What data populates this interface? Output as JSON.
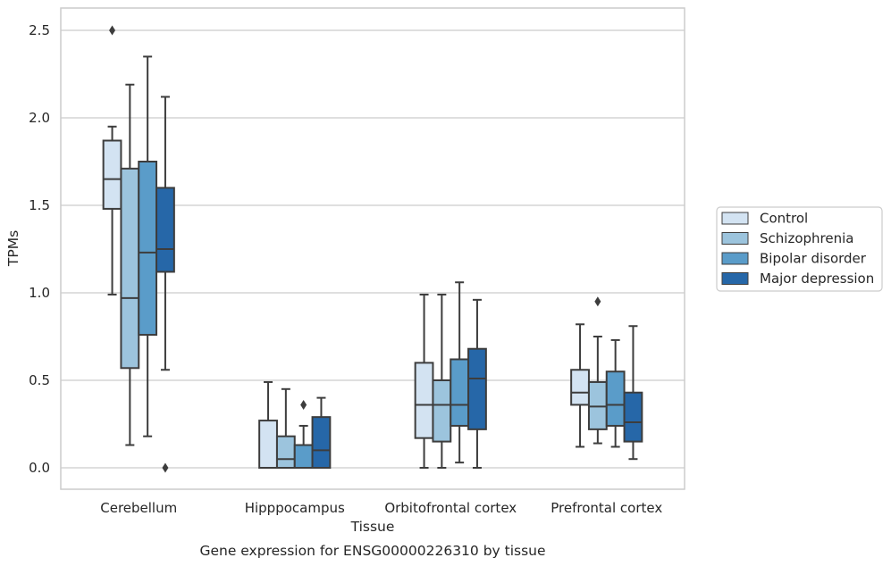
{
  "caption": "Gene expression for ENSG00000226310 by tissue",
  "chart_data": {
    "type": "boxplot",
    "xlabel": "Tissue",
    "ylabel": "TPMs",
    "ylim": [
      -0.12,
      2.63
    ],
    "yticks": [
      "0.0",
      "0.5",
      "1.0",
      "1.5",
      "2.0",
      "2.5"
    ],
    "grid": "horizontal",
    "legend_placement": "right",
    "categories": [
      "Cerebellum",
      "Hipppocampus",
      "Orbitofrontal cortex",
      "Prefrontal cortex"
    ],
    "series": [
      {
        "name": "Control",
        "color": "#d3e3f2",
        "boxes": [
          {
            "min": 0.99,
            "q1": 1.48,
            "median": 1.65,
            "q3": 1.87,
            "max": 1.95,
            "outliers": [
              2.5
            ]
          },
          {
            "min": 0.0,
            "q1": 0.0,
            "median": 0.0,
            "q3": 0.27,
            "max": 0.49,
            "outliers": []
          },
          {
            "min": 0.0,
            "q1": 0.17,
            "median": 0.36,
            "q3": 0.6,
            "max": 0.99,
            "outliers": []
          },
          {
            "min": 0.12,
            "q1": 0.36,
            "median": 0.43,
            "q3": 0.56,
            "max": 0.82,
            "outliers": []
          }
        ]
      },
      {
        "name": "Schizophrenia",
        "color": "#9cc4dd",
        "boxes": [
          {
            "min": 0.13,
            "q1": 0.57,
            "median": 0.97,
            "q3": 1.71,
            "max": 2.19,
            "outliers": []
          },
          {
            "min": 0.0,
            "q1": 0.0,
            "median": 0.05,
            "q3": 0.18,
            "max": 0.45,
            "outliers": []
          },
          {
            "min": 0.0,
            "q1": 0.15,
            "median": 0.36,
            "q3": 0.5,
            "max": 0.99,
            "outliers": []
          },
          {
            "min": 0.14,
            "q1": 0.22,
            "median": 0.35,
            "q3": 0.49,
            "max": 0.75,
            "outliers": [
              0.95
            ]
          }
        ]
      },
      {
        "name": "Bipolar disorder",
        "color": "#5a9cc9",
        "boxes": [
          {
            "min": 0.18,
            "q1": 0.76,
            "median": 1.23,
            "q3": 1.75,
            "max": 2.35,
            "outliers": []
          },
          {
            "min": 0.0,
            "q1": 0.0,
            "median": 0.0,
            "q3": 0.13,
            "max": 0.24,
            "outliers": [
              0.36
            ]
          },
          {
            "min": 0.03,
            "q1": 0.24,
            "median": 0.36,
            "q3": 0.62,
            "max": 1.06,
            "outliers": []
          },
          {
            "min": 0.12,
            "q1": 0.24,
            "median": 0.36,
            "q3": 0.55,
            "max": 0.73,
            "outliers": []
          }
        ]
      },
      {
        "name": "Major depression",
        "color": "#2667a8",
        "boxes": [
          {
            "min": 0.56,
            "q1": 1.12,
            "median": 1.25,
            "q3": 1.6,
            "max": 2.12,
            "outliers": [
              0.0
            ]
          },
          {
            "min": 0.0,
            "q1": 0.0,
            "median": 0.1,
            "q3": 0.29,
            "max": 0.4,
            "outliers": []
          },
          {
            "min": 0.0,
            "q1": 0.22,
            "median": 0.51,
            "q3": 0.68,
            "max": 0.96,
            "outliers": []
          },
          {
            "min": 0.05,
            "q1": 0.15,
            "median": 0.26,
            "q3": 0.43,
            "max": 0.81,
            "outliers": []
          }
        ]
      }
    ]
  }
}
